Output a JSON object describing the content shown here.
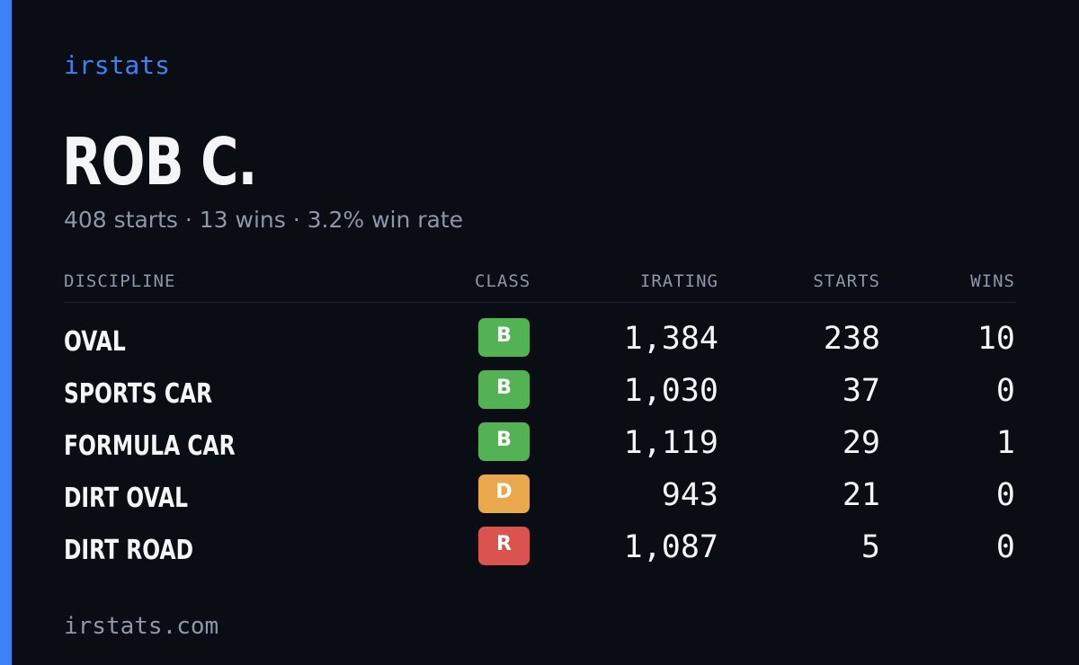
{
  "brand": "irstats",
  "driver_name": "ROB C.",
  "summary": "408 starts · 13 wins · 3.2% win rate",
  "table": {
    "headers": {
      "discipline": "DISCIPLINE",
      "class": "CLASS",
      "irating": "IRATING",
      "starts": "STARTS",
      "wins": "WINS"
    },
    "rows": [
      {
        "discipline": "OVAL",
        "class": "B",
        "irating": "1,384",
        "starts": "238",
        "wins": "10"
      },
      {
        "discipline": "SPORTS CAR",
        "class": "B",
        "irating": "1,030",
        "starts": "37",
        "wins": "0"
      },
      {
        "discipline": "FORMULA CAR",
        "class": "B",
        "irating": "1,119",
        "starts": "29",
        "wins": "1"
      },
      {
        "discipline": "DIRT OVAL",
        "class": "D",
        "irating": "943",
        "starts": "21",
        "wins": "0"
      },
      {
        "discipline": "DIRT ROAD",
        "class": "R",
        "irating": "1,087",
        "starts": "5",
        "wins": "0"
      }
    ]
  },
  "footer": "irstats.com",
  "colors": {
    "background": "#0a0d14",
    "accent": "#3b82f6",
    "class_B": "#53b354",
    "class_D": "#e9a84c",
    "class_R": "#d9534f",
    "muted_text": "#8d97a8"
  }
}
